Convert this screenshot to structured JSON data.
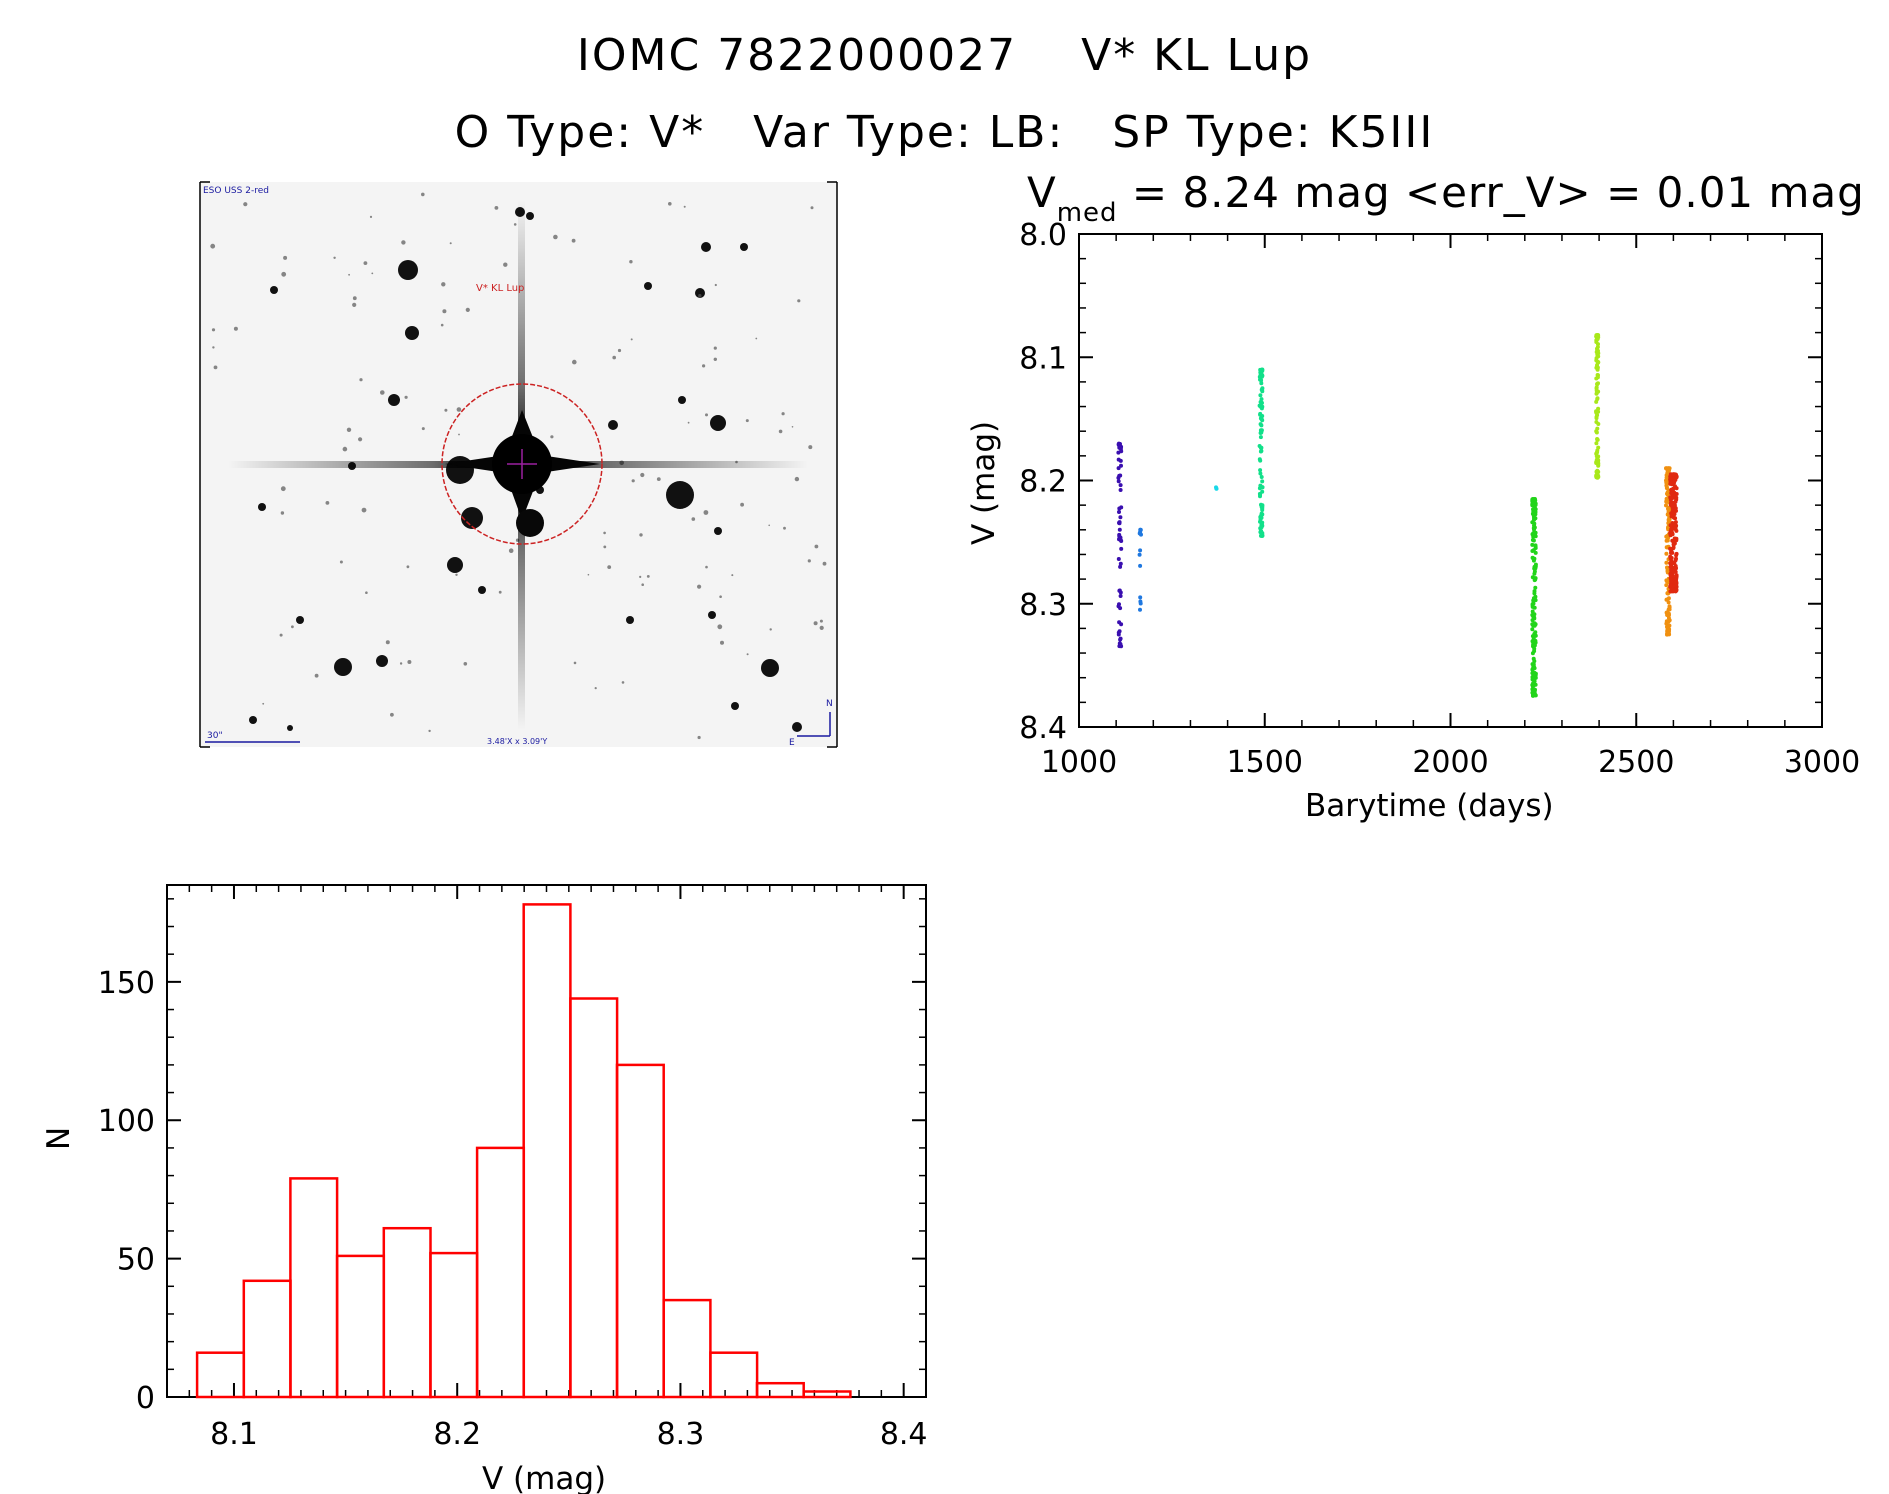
{
  "header": {
    "line1_id": "IOMC 7822000027",
    "line1_name": "V* KL Lup",
    "line2_otype": "O Type: V*",
    "line2_vartype": "Var Type: LB:",
    "line2_sptype": "SP Type: K5III"
  },
  "image_panel": {
    "survey_label": "ESO USS 2-red",
    "target_label": "V* KL Lup",
    "scale_label": "30\"",
    "size_label": "3.48'X x 3.09'Y",
    "north_label": "N",
    "east_label": "E",
    "colors": {
      "circle": "#cc2222",
      "annotations": "#1a1aa0"
    }
  },
  "chart_data": [
    {
      "type": "scatter",
      "title_prefix": "V",
      "title_subscript": "med",
      "title_rest": " = 8.24 mag <err_V> = 0.01 mag",
      "xlabel": "Barytime (days)",
      "ylabel": "V (mag)",
      "xlim": [
        1000,
        3000
      ],
      "ylim": [
        8.4,
        8.0
      ],
      "y_inverted": true,
      "xticks": [
        1000,
        1500,
        2000,
        2500,
        3000
      ],
      "xtick_labels": [
        "1000",
        "1500",
        "2000",
        "2500",
        "3000"
      ],
      "yticks": [
        8.0,
        8.1,
        8.2,
        8.3,
        8.4
      ],
      "ytick_labels": [
        "8.0",
        "8.1",
        "8.2",
        "8.3",
        "8.4"
      ],
      "groups": [
        {
          "x": 1110,
          "x_spread": 8,
          "ymin": 8.17,
          "ymax": 8.335,
          "n": 60,
          "color": "#3a0fb0"
        },
        {
          "x": 1165,
          "x_spread": 4,
          "ymin": 8.24,
          "ymax": 8.305,
          "n": 14,
          "color": "#1f78e0"
        },
        {
          "x": 1370,
          "x_spread": 3,
          "ymin": 8.195,
          "ymax": 8.207,
          "n": 3,
          "color": "#18d8e8"
        },
        {
          "x": 1490,
          "x_spread": 8,
          "ymin": 8.11,
          "ymax": 8.245,
          "n": 95,
          "color": "#12e08a"
        },
        {
          "x": 2225,
          "x_spread": 10,
          "ymin": 8.215,
          "ymax": 8.375,
          "n": 170,
          "color": "#22d41a"
        },
        {
          "x": 2395,
          "x_spread": 6,
          "ymin": 8.082,
          "ymax": 8.198,
          "n": 110,
          "color": "#a8e81a"
        },
        {
          "x": 2585,
          "x_spread": 10,
          "ymin": 8.19,
          "ymax": 8.325,
          "n": 130,
          "color": "#f09010"
        },
        {
          "x": 2600,
          "x_spread": 18,
          "ymin": 8.195,
          "ymax": 8.29,
          "n": 220,
          "color": "#e02a10"
        }
      ]
    },
    {
      "type": "histogram",
      "xlabel": "V (mag)",
      "ylabel": "N",
      "xlim": [
        8.07,
        8.41
      ],
      "ylim": [
        0,
        185
      ],
      "xticks": [
        8.1,
        8.2,
        8.3,
        8.4
      ],
      "xtick_labels": [
        "8.1",
        "8.2",
        "8.3",
        "8.4"
      ],
      "yticks": [
        0,
        50,
        100,
        150
      ],
      "ytick_labels": [
        "0",
        "50",
        "100",
        "150"
      ],
      "bin_start": 8.0835,
      "bin_width": 0.0209,
      "counts": [
        16,
        42,
        79,
        51,
        61,
        52,
        90,
        178,
        144,
        120,
        35,
        16,
        5,
        2
      ],
      "bar_color": "#ff0000"
    }
  ]
}
